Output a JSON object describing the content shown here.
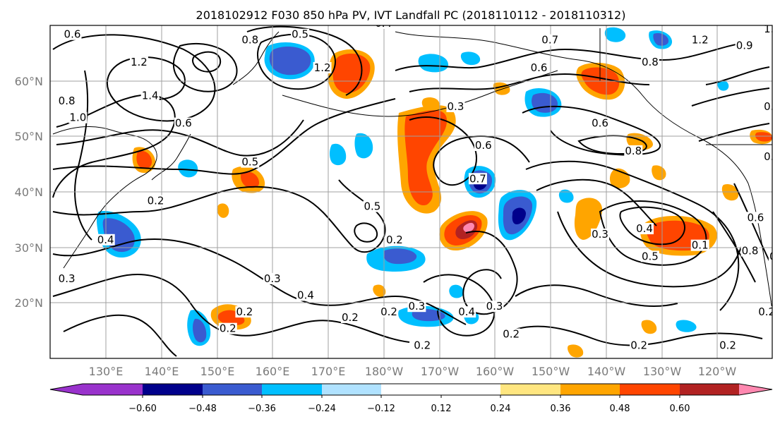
{
  "title": "2018102912 F030 850 hPa PV, IVT Landfall PC (2018110112 - 2018110312)",
  "map": {
    "lon_labels": [
      "130°E",
      "140°E",
      "150°E",
      "160°E",
      "170°E",
      "180°W",
      "170°W",
      "160°W",
      "150°W",
      "140°W",
      "130°W",
      "120°W"
    ],
    "lat_labels": [
      "60°N",
      "50°N",
      "40°N",
      "30°N",
      "20°N"
    ],
    "contour_labels": [
      {
        "text": "0.6",
        "lon": 124,
        "lat": 68
      },
      {
        "text": "1.2",
        "lon": 136,
        "lat": 63
      },
      {
        "text": "1.4",
        "lon": 138,
        "lat": 57
      },
      {
        "text": "1.0",
        "lon": 125,
        "lat": 53
      },
      {
        "text": "0.8",
        "lon": 123,
        "lat": 56
      },
      {
        "text": "0.6",
        "lon": 144,
        "lat": 52
      },
      {
        "text": "0.8",
        "lon": 156,
        "lat": 67
      },
      {
        "text": "0.5",
        "lon": 156,
        "lat": 45
      },
      {
        "text": "0.2",
        "lon": 139,
        "lat": 38
      },
      {
        "text": "0.4",
        "lon": 130,
        "lat": 31
      },
      {
        "text": "0.3",
        "lon": 123,
        "lat": 24
      },
      {
        "text": "0.3",
        "lon": 160,
        "lat": 24
      },
      {
        "text": "0.2",
        "lon": 152,
        "lat": 15
      },
      {
        "text": "0.2",
        "lon": 155,
        "lat": 18
      },
      {
        "text": "0.4",
        "lon": 166,
        "lat": 21
      },
      {
        "text": "0.2",
        "lon": 174,
        "lat": 17
      },
      {
        "text": "0.2",
        "lon": 181,
        "lat": 18
      },
      {
        "text": "0.3",
        "lon": 186,
        "lat": 19
      },
      {
        "text": "0.5",
        "lon": 178,
        "lat": 37
      },
      {
        "text": "0.2",
        "lon": 182,
        "lat": 31
      },
      {
        "text": "0.2",
        "lon": 187,
        "lat": 12
      },
      {
        "text": "0.3",
        "lon": 200,
        "lat": 19
      },
      {
        "text": "0.4",
        "lon": 195,
        "lat": 18
      },
      {
        "text": "0.2",
        "lon": 203,
        "lat": 14
      },
      {
        "text": "0.3",
        "lon": 193,
        "lat": 55
      },
      {
        "text": "0.6",
        "lon": 198,
        "lat": 48
      },
      {
        "text": "0.7",
        "lon": 197,
        "lat": 42
      },
      {
        "text": "0.7",
        "lon": 210,
        "lat": 67
      },
      {
        "text": "0.6",
        "lon": 208,
        "lat": 62
      },
      {
        "text": "0.6",
        "lon": 219,
        "lat": 52
      },
      {
        "text": "0.8",
        "lon": 225,
        "lat": 47
      },
      {
        "text": "0.3",
        "lon": 219,
        "lat": 32
      },
      {
        "text": "0.8",
        "lon": 228,
        "lat": 63
      },
      {
        "text": "0.4",
        "lon": 227,
        "lat": 33
      },
      {
        "text": "0.5",
        "lon": 228,
        "lat": 28
      },
      {
        "text": "0.1",
        "lon": 237,
        "lat": 30
      },
      {
        "text": "0.2",
        "lon": 226,
        "lat": 12
      },
      {
        "text": "0.2",
        "lon": 242,
        "lat": 12
      },
      {
        "text": "0.2",
        "lon": 249,
        "lat": 18
      },
      {
        "text": "1.2",
        "lon": 237,
        "lat": 67
      },
      {
        "text": "1.2",
        "lon": 250,
        "lat": 69
      },
      {
        "text": "0.9",
        "lon": 245,
        "lat": 66
      },
      {
        "text": "0.5",
        "lon": 250,
        "lat": 55
      },
      {
        "text": "0.3",
        "lon": 250,
        "lat": 46
      },
      {
        "text": "0.8",
        "lon": 246,
        "lat": 29
      },
      {
        "text": "0.6",
        "lon": 247,
        "lat": 35
      },
      {
        "text": "0.4",
        "lon": 251,
        "lat": 28
      },
      {
        "text": "0.5",
        "lon": 165,
        "lat": 68
      },
      {
        "text": "1.2",
        "lon": 169,
        "lat": 62
      },
      {
        "text": "0.4",
        "lon": 180,
        "lat": 70
      }
    ]
  },
  "colorbar": {
    "labels": [
      "−0.60",
      "−0.48",
      "−0.36",
      "−0.24",
      "−0.12",
      "0.12",
      "0.24",
      "0.36",
      "0.48",
      "0.60"
    ],
    "colors": [
      "#9932cc",
      "#00008b",
      "#3a5bd0",
      "#00bfff",
      "#b0e2ff",
      "#ffffff",
      "#ffe680",
      "#ffa500",
      "#ff4500",
      "#b22222",
      "#ff88b0"
    ]
  }
}
